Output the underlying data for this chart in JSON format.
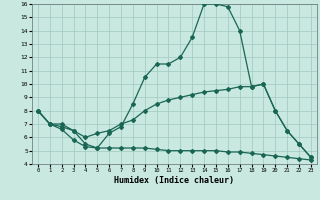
{
  "xlabel": "Humidex (Indice chaleur)",
  "xlim": [
    -0.5,
    23.5
  ],
  "ylim": [
    4,
    16
  ],
  "xticks": [
    0,
    1,
    2,
    3,
    4,
    5,
    6,
    7,
    8,
    9,
    10,
    11,
    12,
    13,
    14,
    15,
    16,
    17,
    18,
    19,
    20,
    21,
    22,
    23
  ],
  "yticks": [
    4,
    5,
    6,
    7,
    8,
    9,
    10,
    11,
    12,
    13,
    14,
    15,
    16
  ],
  "background_color": "#c8e8e0",
  "grid_color": "#a0c8c0",
  "line_color": "#1a6655",
  "line1_x": [
    0,
    1,
    2,
    3,
    4,
    5,
    6,
    7,
    8,
    9,
    10,
    11,
    12,
    13,
    14,
    15,
    16,
    17,
    18,
    19,
    20,
    21,
    22,
    23
  ],
  "line1_y": [
    8.0,
    7.0,
    6.6,
    5.8,
    5.3,
    5.2,
    5.2,
    5.2,
    5.2,
    5.2,
    5.1,
    5.0,
    5.0,
    5.0,
    5.0,
    5.0,
    4.9,
    4.9,
    4.8,
    4.7,
    4.6,
    4.5,
    4.4,
    4.3
  ],
  "line2_x": [
    0,
    1,
    2,
    3,
    4,
    5,
    6,
    7,
    8,
    9,
    10,
    11,
    12,
    13,
    14,
    15,
    16,
    17,
    18,
    19,
    20,
    21,
    22,
    23
  ],
  "line2_y": [
    8.0,
    7.0,
    6.8,
    6.5,
    6.0,
    6.3,
    6.5,
    7.0,
    7.3,
    8.0,
    8.5,
    8.8,
    9.0,
    9.2,
    9.4,
    9.5,
    9.6,
    9.8,
    9.8,
    10.0,
    8.0,
    6.5,
    5.5,
    4.5
  ],
  "line3_x": [
    0,
    1,
    2,
    3,
    4,
    5,
    6,
    7,
    8,
    9,
    10,
    11,
    12,
    13,
    14,
    15,
    16,
    17,
    18,
    19,
    20,
    21,
    22,
    23
  ],
  "line3_y": [
    8.0,
    7.0,
    7.0,
    6.5,
    5.5,
    5.2,
    6.3,
    6.8,
    8.5,
    10.5,
    11.5,
    11.5,
    12.0,
    13.5,
    16.0,
    16.0,
    15.8,
    14.0,
    9.8,
    10.0,
    8.0,
    6.5,
    5.5,
    4.5
  ],
  "marker": "D",
  "markersize": 2.0,
  "linewidth": 0.9
}
